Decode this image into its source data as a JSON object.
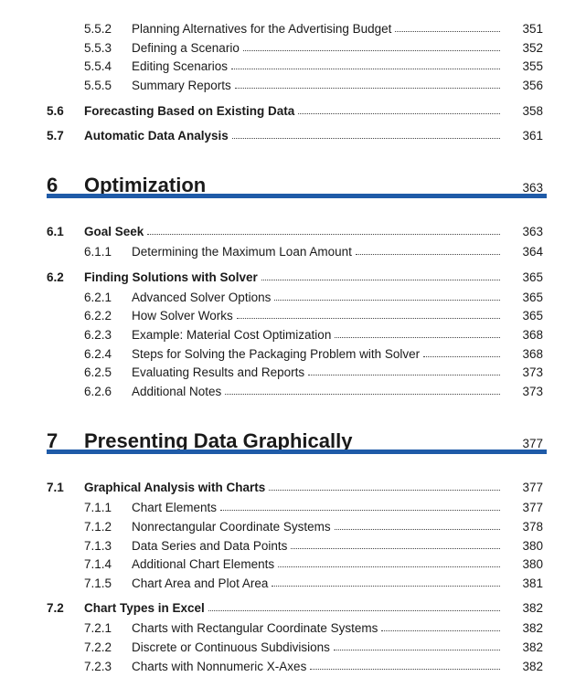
{
  "chapters": [
    {
      "sections": [
        {
          "subsections": [
            {
              "number": "5.5.2",
              "title": "Planning Alternatives for the Advertising Budget",
              "page": 351
            },
            {
              "number": "5.5.3",
              "title": "Defining a Scenario",
              "page": 352
            },
            {
              "number": "5.5.4",
              "title": "Editing Scenarios",
              "page": 355
            },
            {
              "number": "5.5.5",
              "title": "Summary Reports",
              "page": 356
            }
          ]
        },
        {
          "number": "5.6",
          "title": "Forecasting Based on Existing Data",
          "page": 358,
          "subsections": []
        },
        {
          "number": "5.7",
          "title": "Automatic Data Analysis",
          "page": 361,
          "subsections": []
        }
      ]
    },
    {
      "number": "6",
      "title": "Optimization",
      "page": 363,
      "sections": [
        {
          "number": "6.1",
          "title": "Goal Seek",
          "page": 363,
          "subsections": [
            {
              "number": "6.1.1",
              "title": "Determining the Maximum Loan Amount",
              "page": 364
            }
          ]
        },
        {
          "number": "6.2",
          "title": "Finding Solutions with Solver",
          "page": 365,
          "subsections": [
            {
              "number": "6.2.1",
              "title": "Advanced Solver Options",
              "page": 365
            },
            {
              "number": "6.2.2",
              "title": "How Solver Works",
              "page": 365
            },
            {
              "number": "6.2.3",
              "title": "Example: Material Cost Optimization",
              "page": 368
            },
            {
              "number": "6.2.4",
              "title": "Steps for Solving the Packaging Problem with Solver",
              "page": 368
            },
            {
              "number": "6.2.5",
              "title": "Evaluating Results and Reports",
              "page": 373
            },
            {
              "number": "6.2.6",
              "title": "Additional Notes",
              "page": 373
            }
          ]
        }
      ]
    },
    {
      "number": "7",
      "title": "Presenting Data Graphically",
      "page": 377,
      "sections": [
        {
          "number": "7.1",
          "title": "Graphical Analysis with Charts",
          "page": 377,
          "subsections": [
            {
              "number": "7.1.1",
              "title": "Chart Elements",
              "page": 377
            },
            {
              "number": "7.1.2",
              "title": "Nonrectangular Coordinate Systems",
              "page": 378
            },
            {
              "number": "7.1.3",
              "title": "Data Series and Data Points",
              "page": 380
            },
            {
              "number": "7.1.4",
              "title": "Additional Chart Elements",
              "page": 380
            },
            {
              "number": "7.1.5",
              "title": "Chart Area and Plot Area",
              "page": 381
            }
          ]
        },
        {
          "number": "7.2",
          "title": "Chart Types in Excel",
          "page": 382,
          "subsections": [
            {
              "number": "7.2.1",
              "title": "Charts with Rectangular Coordinate Systems",
              "page": 382
            },
            {
              "number": "7.2.2",
              "title": "Discrete or Continuous Subdivisions",
              "page": 382
            },
            {
              "number": "7.2.3",
              "title": "Charts with Nonnumeric X-Axes",
              "page": 382
            }
          ]
        }
      ]
    }
  ]
}
